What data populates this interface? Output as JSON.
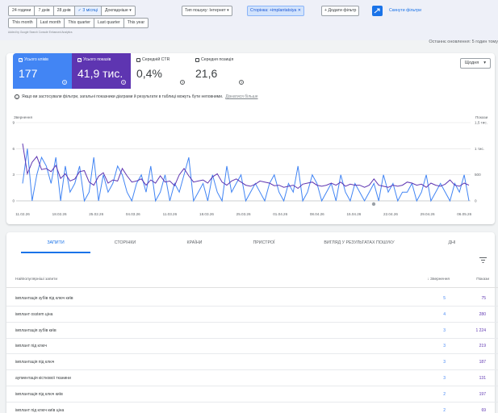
{
  "filters": {
    "date_ranges": [
      "24 години",
      "7 днів",
      "28 днів",
      "3 місяці"
    ],
    "selected_range": "3 місяці",
    "more_label": "Докладніше",
    "search_type_label": "Тип пошуку: Інтернет",
    "page_filter_label": "Сторінка: +implantatsiya",
    "add_filter_label": "Додати фільтр",
    "reset_label": "Скинути фільтри",
    "periods": [
      "This month",
      "Last month",
      "This quarter",
      "Last quarter",
      "This year"
    ],
    "attribution": "Added by Google Search Console Enhanced Analytics"
  },
  "last_updated": "Останнє оновлення: 5 годин тому",
  "metrics": [
    {
      "label": "Усього кліків",
      "value": "177",
      "checked": true,
      "color": "#4285f4"
    },
    {
      "label": "Усього показів",
      "value": "41,9 тис.",
      "checked": true,
      "color": "#5e35b1"
    },
    {
      "label": "Середній CTR",
      "value": "0,4%",
      "checked": false
    },
    {
      "label": "Середня позиція",
      "value": "21,6",
      "checked": false
    }
  ],
  "granularity": "Щодня",
  "info": {
    "text": "Якщо ви застосували фільтри, загальні показники діаграми й результати в таблиці можуть бути неповними.",
    "link": "Дізнатися більше"
  },
  "chart_data": {
    "type": "line",
    "x_labels": [
      "11.02.26",
      "18.02.26",
      "25.02.26",
      "04.03.26",
      "11.03.26",
      "18.03.26",
      "25.03.26",
      "01.04.26",
      "08.04.26",
      "15.04.26",
      "22.04.26",
      "29.04.26",
      "06.05.26"
    ],
    "left_axis": {
      "title": "Звернення",
      "ticks": [
        "9",
        "6",
        "3",
        "0"
      ],
      "range": [
        0,
        9
      ]
    },
    "right_axis": {
      "title": "Покази",
      "ticks": [
        "1,5 тис.",
        "1 тис.",
        "500",
        "0"
      ],
      "range": [
        0,
        1500
      ]
    },
    "series": [
      {
        "name": "Звернення",
        "color": "#4285f4",
        "axis": "left",
        "values": [
          2,
          6,
          0,
          3,
          5,
          4,
          2,
          5,
          0,
          4,
          1,
          2,
          4,
          0,
          1,
          5,
          0,
          3,
          1,
          2,
          4,
          3,
          1,
          0,
          2,
          3,
          1,
          4,
          0,
          1,
          3,
          0,
          2,
          1,
          3,
          5,
          0,
          1,
          2,
          0,
          3,
          1,
          0,
          4,
          1,
          2,
          3,
          0,
          1,
          2,
          1,
          0,
          2,
          3,
          1,
          0,
          2,
          1,
          4,
          0,
          1,
          3,
          2,
          0,
          1,
          2,
          0,
          3,
          1,
          0,
          2,
          1,
          0,
          1,
          2,
          0,
          3,
          1,
          2,
          0,
          1,
          1,
          2,
          0,
          1,
          3,
          0,
          1,
          2,
          1,
          0,
          2,
          1,
          3,
          0
        ],
        "impr": [
          1100,
          520,
          740,
          850,
          600,
          620,
          560,
          680,
          430,
          520,
          380,
          420,
          560,
          580,
          360,
          300,
          470,
          540,
          340,
          400,
          380,
          620,
          480,
          360,
          380,
          420,
          300,
          400,
          340,
          480,
          360,
          380,
          290,
          500,
          620,
          480,
          360,
          380,
          400,
          340,
          460,
          520,
          360,
          300,
          380,
          420,
          360,
          300,
          280,
          320,
          380,
          360,
          340,
          290,
          300,
          260,
          280,
          300,
          240,
          320,
          340,
          360,
          300,
          280,
          300,
          340,
          300,
          360,
          280,
          320,
          300,
          300,
          260,
          300,
          420,
          300,
          280,
          260,
          300,
          280,
          300,
          360,
          340,
          300,
          320,
          260,
          340,
          300,
          280,
          320,
          400,
          300,
          280,
          340,
          300
        ]
      }
    ]
  },
  "tabs": [
    "ЗАПИТИ",
    "СТОРІНКИ",
    "КРАЇНИ",
    "ПРИСТРОЇ",
    "ВИГЛЯД У РЕЗУЛЬТАТАХ ПОШУКУ",
    "ДНІ"
  ],
  "table": {
    "headers": {
      "query": "Найпопулярніші запити",
      "clicks": "Звернення",
      "impressions": "Покази"
    },
    "rows": [
      {
        "query": "імплантація зубів під ключ київ",
        "clicks": "5",
        "impressions": "75"
      },
      {
        "query": "імплант osstem ціна",
        "clicks": "4",
        "impressions": "280"
      },
      {
        "query": "імплантація зубів київ",
        "clicks": "3",
        "impressions": "1 224"
      },
      {
        "query": "імплант під ключ",
        "clicks": "3",
        "impressions": "219"
      },
      {
        "query": "імплантація під ключ",
        "clicks": "3",
        "impressions": "187"
      },
      {
        "query": "аугментація кісткової тканини",
        "clicks": "3",
        "impressions": "131"
      },
      {
        "query": "імплантація під ключ київ",
        "clicks": "2",
        "impressions": "197"
      },
      {
        "query": "імплант під ключ київ ціна",
        "clicks": "2",
        "impressions": "69"
      }
    ]
  }
}
